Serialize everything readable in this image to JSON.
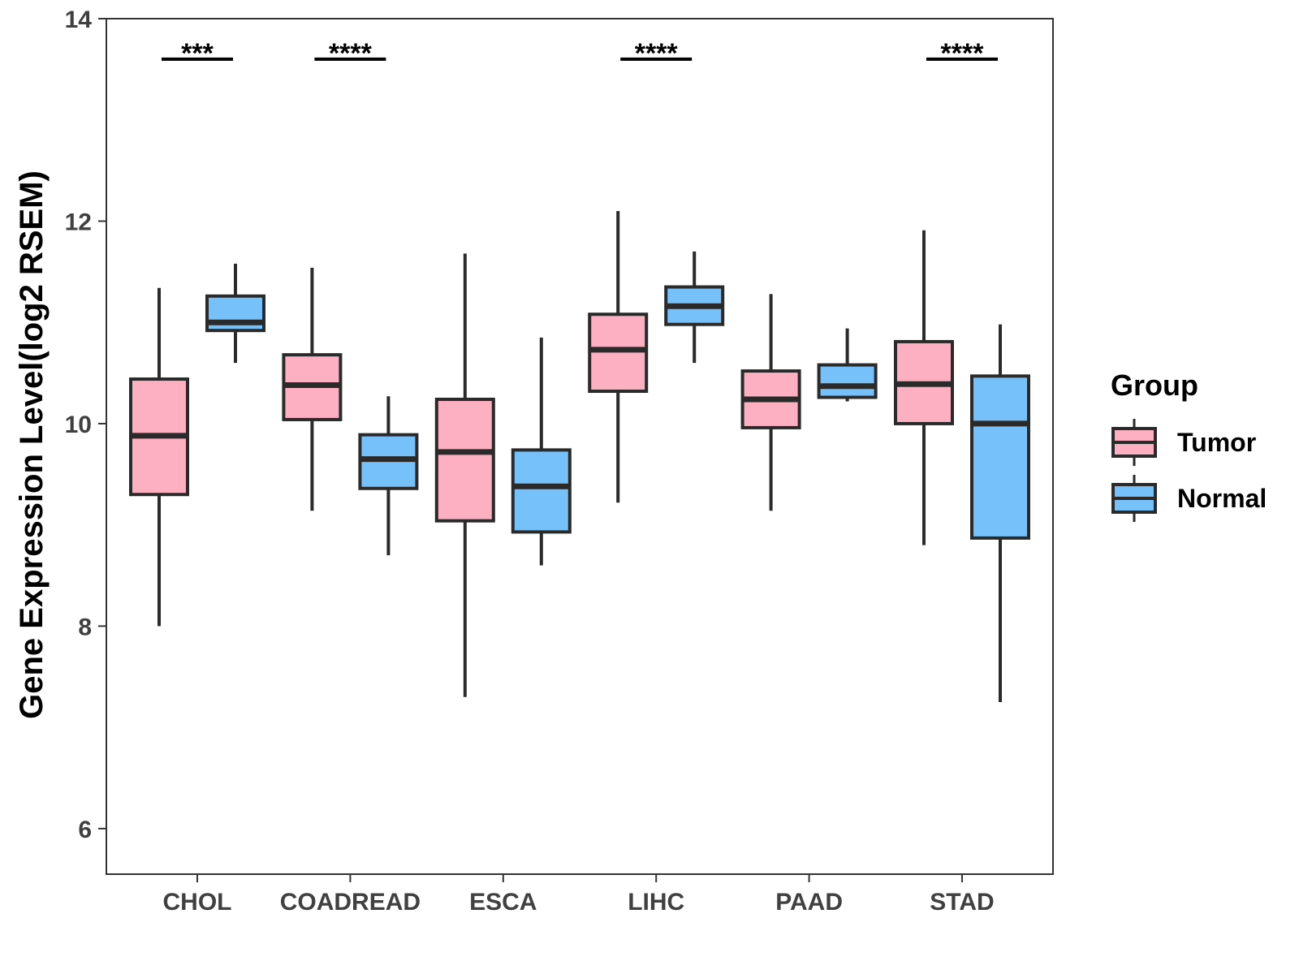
{
  "chart_data": {
    "type": "boxplot",
    "title": "",
    "xlabel": "",
    "ylabel": "Gene Expression Level(log2 RSEM)",
    "ylim": [
      5.55,
      14.0
    ],
    "yticks": [
      6,
      8,
      10,
      12,
      14
    ],
    "categories": [
      "CHOL",
      "COADREAD",
      "ESCA",
      "LIHC",
      "PAAD",
      "STAD"
    ],
    "series": [
      {
        "name": "Tumor",
        "color": "#fcb0c2",
        "boxes": [
          {
            "min": 8.0,
            "q1": 9.3,
            "median": 9.88,
            "q3": 10.44,
            "max": 11.34
          },
          {
            "min": 9.14,
            "q1": 10.04,
            "median": 10.38,
            "q3": 10.68,
            "max": 11.54
          },
          {
            "min": 7.3,
            "q1": 9.04,
            "median": 9.72,
            "q3": 10.24,
            "max": 11.68
          },
          {
            "min": 9.22,
            "q1": 10.32,
            "median": 10.73,
            "q3": 11.08,
            "max": 12.1
          },
          {
            "min": 9.14,
            "q1": 9.96,
            "median": 10.24,
            "q3": 10.52,
            "max": 11.28
          },
          {
            "min": 8.8,
            "q1": 10.0,
            "median": 10.39,
            "q3": 10.81,
            "max": 11.91
          }
        ]
      },
      {
        "name": "Normal",
        "color": "#76c1f9",
        "boxes": [
          {
            "min": 10.6,
            "q1": 10.92,
            "median": 11.0,
            "q3": 11.26,
            "max": 11.58
          },
          {
            "min": 8.7,
            "q1": 9.36,
            "median": 9.65,
            "q3": 9.89,
            "max": 10.27
          },
          {
            "min": 8.6,
            "q1": 8.93,
            "median": 9.38,
            "q3": 9.74,
            "max": 10.85
          },
          {
            "min": 10.6,
            "q1": 10.98,
            "median": 11.16,
            "q3": 11.35,
            "max": 11.7
          },
          {
            "min": 10.22,
            "q1": 10.26,
            "median": 10.37,
            "q3": 10.58,
            "max": 10.94
          },
          {
            "min": 7.25,
            "q1": 8.87,
            "median": 10.0,
            "q3": 10.47,
            "max": 10.98
          }
        ]
      }
    ],
    "significance": [
      {
        "category": "CHOL",
        "label": "***",
        "y": 13.6
      },
      {
        "category": "COADREAD",
        "label": "****",
        "y": 13.6
      },
      {
        "category": "LIHC",
        "label": "****",
        "y": 13.6
      },
      {
        "category": "STAD",
        "label": "****",
        "y": 13.6
      }
    ],
    "legend": {
      "title": "Group",
      "position": "right"
    }
  }
}
